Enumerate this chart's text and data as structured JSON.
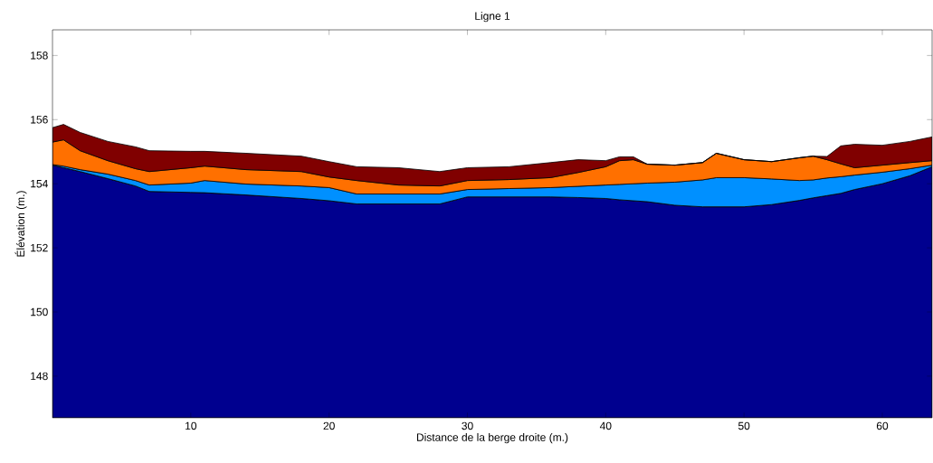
{
  "chart_data": {
    "type": "area",
    "title": "Ligne 1",
    "xlabel": "Distance de la berge droite (m.)",
    "ylabel": "Élévation (m.)",
    "x": [
      0,
      0.8,
      2,
      4,
      6,
      7,
      10,
      11,
      14,
      18,
      20,
      22,
      25,
      28,
      30,
      33,
      36,
      38,
      40,
      41,
      42,
      43,
      45,
      47,
      48,
      50,
      52,
      54,
      55,
      56,
      57,
      58,
      60,
      62,
      63.6
    ],
    "xlim": [
      0,
      63.6
    ],
    "ylim": [
      146.7,
      158.8
    ],
    "xticks": [
      10,
      20,
      30,
      40,
      50,
      60
    ],
    "yticks": [
      148,
      150,
      152,
      154,
      156,
      158
    ],
    "series": [
      {
        "color": "#00008f",
        "values": [
          154.58,
          154.5,
          154.38,
          154.16,
          153.93,
          153.76,
          153.73,
          153.72,
          153.65,
          153.54,
          153.47,
          153.37,
          153.37,
          153.37,
          153.59,
          153.59,
          153.59,
          153.57,
          153.54,
          153.5,
          153.47,
          153.44,
          153.33,
          153.28,
          153.28,
          153.28,
          153.35,
          153.48,
          153.56,
          153.63,
          153.7,
          153.82,
          154.0,
          154.25,
          154.53
        ]
      },
      {
        "color": "#0090ff",
        "values": [
          154.6,
          154.55,
          154.44,
          154.3,
          154.1,
          153.96,
          154.02,
          154.1,
          153.99,
          153.93,
          153.88,
          153.68,
          153.68,
          153.68,
          153.82,
          153.85,
          153.88,
          153.92,
          153.96,
          153.98,
          154.0,
          154.02,
          154.05,
          154.12,
          154.19,
          154.19,
          154.15,
          154.1,
          154.12,
          154.18,
          154.22,
          154.27,
          154.36,
          154.47,
          154.58
        ]
      },
      {
        "color": "#ff7000",
        "values": [
          155.3,
          155.37,
          155.03,
          154.72,
          154.47,
          154.38,
          154.5,
          154.55,
          154.44,
          154.38,
          154.21,
          154.1,
          153.96,
          153.93,
          154.1,
          154.13,
          154.19,
          154.35,
          154.53,
          154.72,
          154.75,
          154.61,
          154.58,
          154.66,
          154.95,
          154.75,
          154.69,
          154.81,
          154.86,
          154.75,
          154.62,
          154.5,
          154.58,
          154.66,
          154.72
        ]
      },
      {
        "color": "#800000",
        "values": [
          155.75,
          155.85,
          155.6,
          155.32,
          155.15,
          155.03,
          155.01,
          155.01,
          154.95,
          154.86,
          154.69,
          154.53,
          154.5,
          154.38,
          154.5,
          154.53,
          154.66,
          154.75,
          154.72,
          154.84,
          154.84,
          154.61,
          154.58,
          154.66,
          154.95,
          154.75,
          154.69,
          154.81,
          154.86,
          154.85,
          155.18,
          155.23,
          155.2,
          155.32,
          155.46
        ]
      }
    ]
  }
}
